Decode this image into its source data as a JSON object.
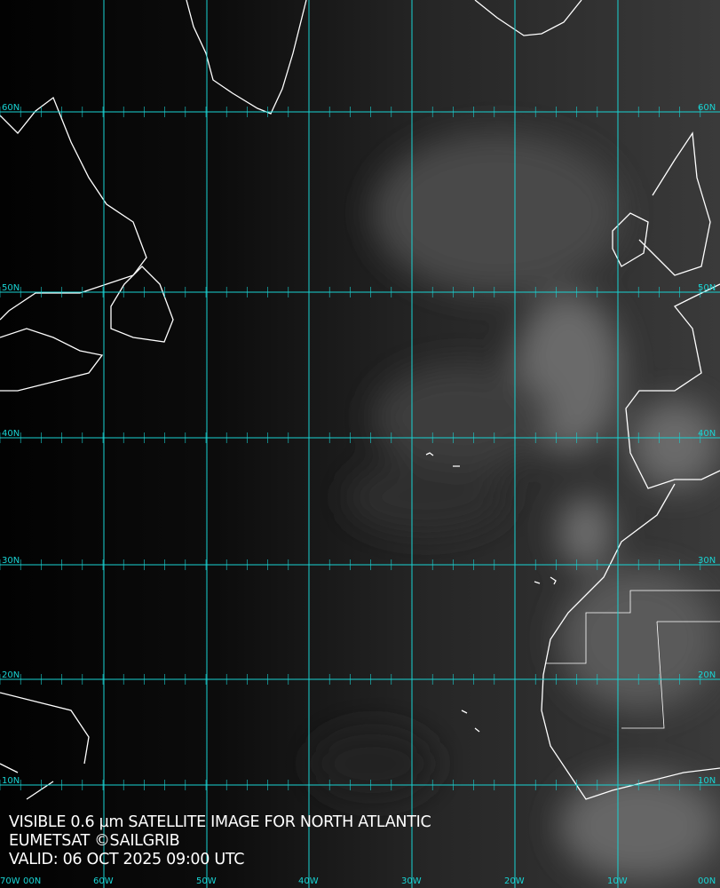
{
  "caption": {
    "line1": "VISIBLE 0.6 µm SATELLITE IMAGE FOR NORTH ATLANTIC",
    "line2": "EUMETSAT ©SAILGRIB",
    "line3": "VALID:  06 OCT 2025 09:00 UTC"
  },
  "grid": {
    "color": "#19d3d3",
    "longitudes": [
      "70W",
      "60W",
      "50W",
      "40W",
      "30W",
      "20W",
      "10W",
      "00N"
    ],
    "latitudes_left": [
      "60N",
      "50N",
      "40N",
      "30N",
      "20N",
      "10N",
      "00N"
    ],
    "latitudes_right": [
      "60N",
      "50N",
      "40N",
      "30N",
      "20N",
      "10N"
    ]
  },
  "coastline_color": "#ffffff"
}
